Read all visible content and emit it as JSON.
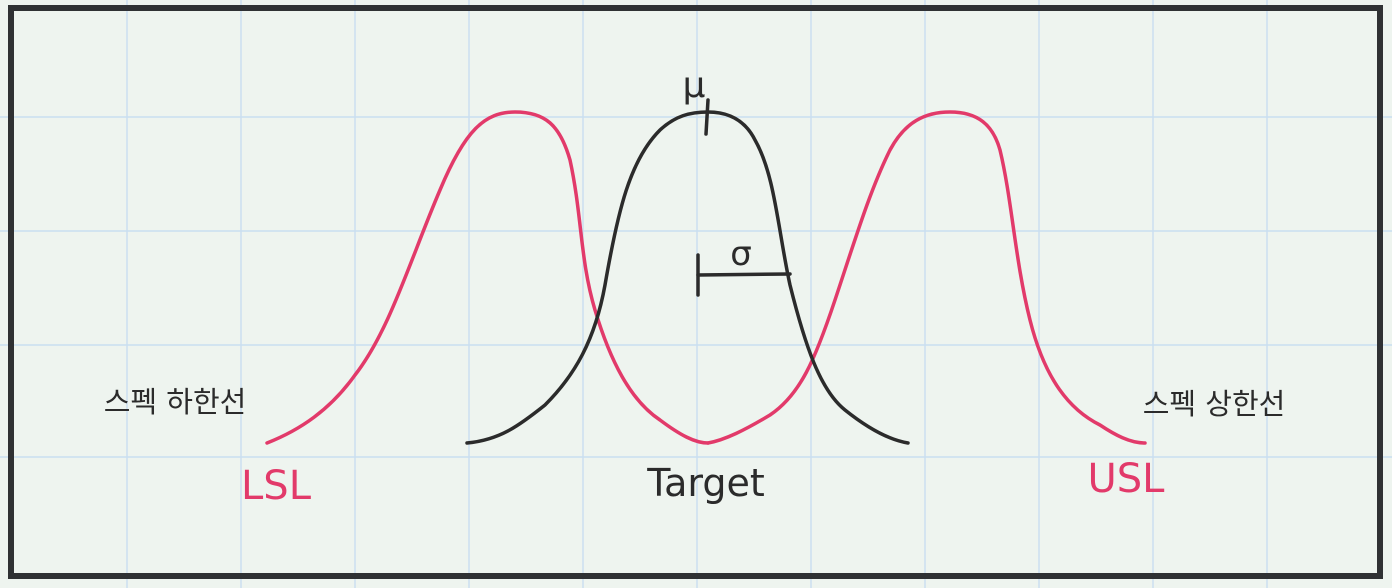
{
  "labels": {
    "lsl_korean": "스펙 하한선",
    "lsl": "LSL",
    "target": "Target",
    "usl_korean": "스펙 상한선",
    "usl": "USL",
    "mu": "μ",
    "sigma": "σ"
  },
  "colors": {
    "background": "#eef4ef",
    "grid": "#c9def0",
    "frame": "#2f3133",
    "process_curve": "#2b2b2b",
    "shifted_curves": "#e23a6a"
  }
}
